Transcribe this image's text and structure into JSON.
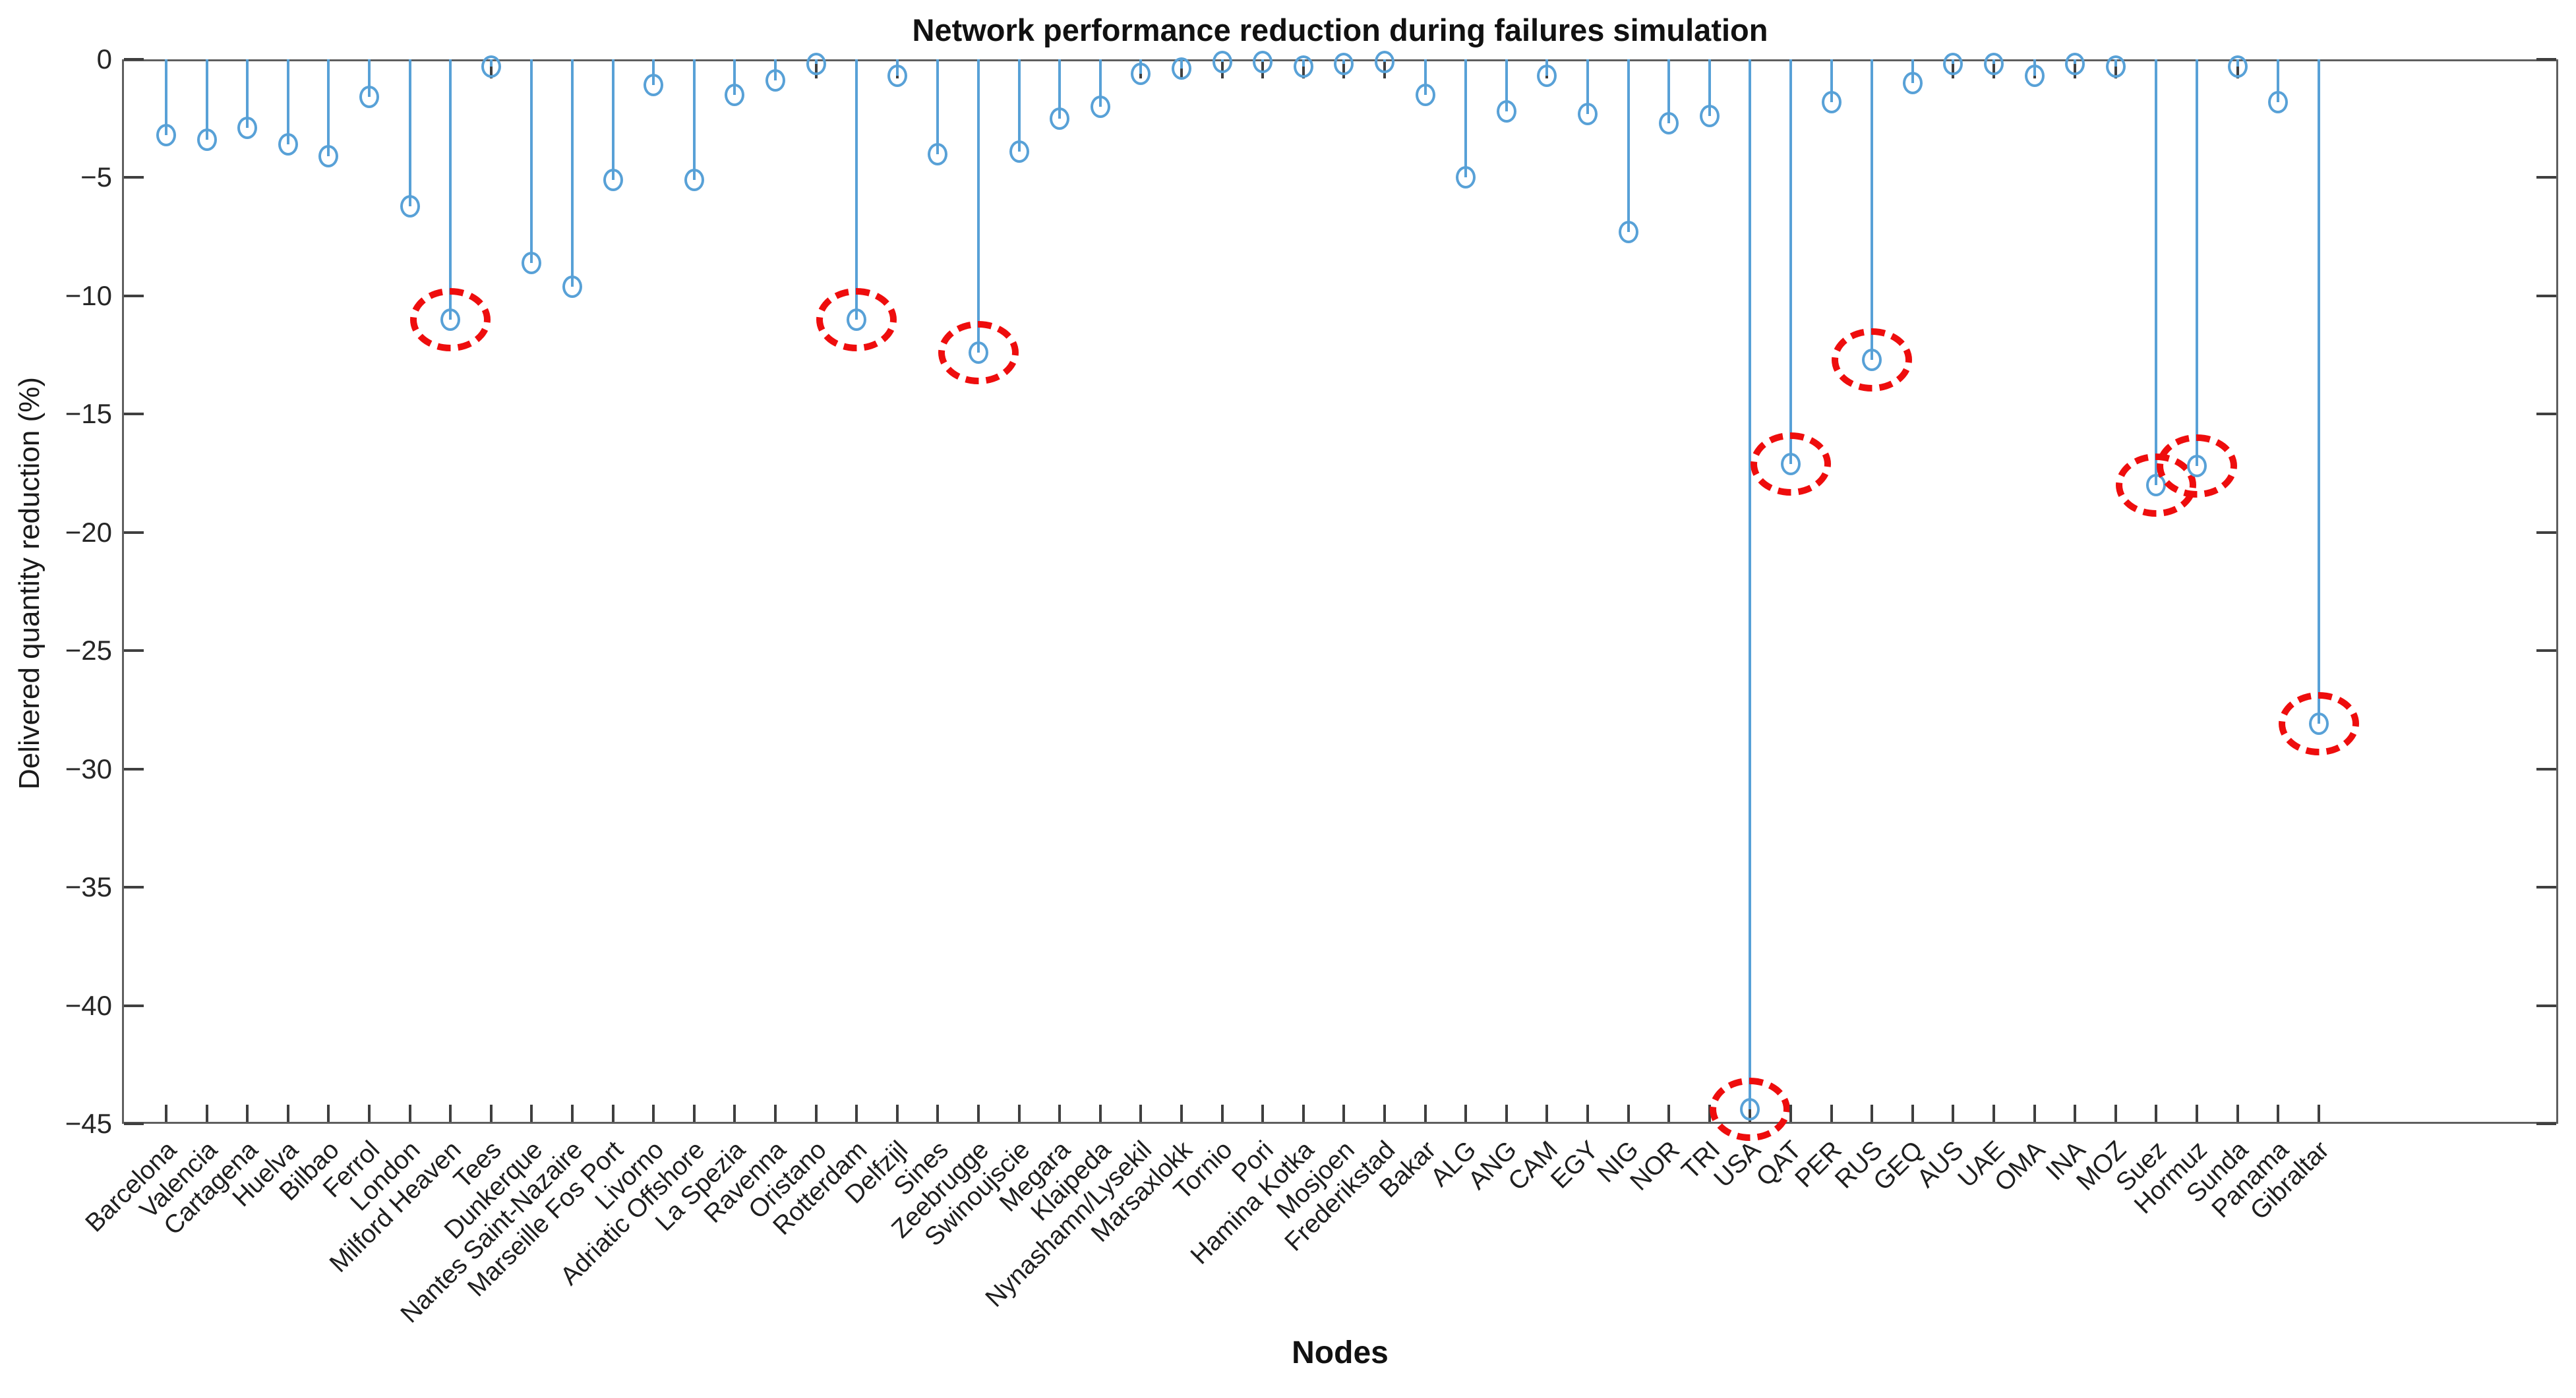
{
  "chart_data": {
    "type": "stem",
    "title": "Network performance reduction during failures simulation",
    "xlabel": "Nodes",
    "ylabel": "Delivered quantity reduction (%)",
    "ylim": [
      -45,
      0
    ],
    "grid": false,
    "legend": "none",
    "stem_color": "#58a1d7",
    "highlight_color": "#ee0d0d",
    "yticks": [
      {
        "label": "0",
        "value": 0
      },
      {
        "label": "−5",
        "value": -5
      },
      {
        "label": "−10",
        "value": -10
      },
      {
        "label": "−15",
        "value": -15
      },
      {
        "label": "−20",
        "value": -20
      },
      {
        "label": "−25",
        "value": -25
      },
      {
        "label": "−30",
        "value": -30
      },
      {
        "label": "−35",
        "value": -35
      },
      {
        "label": "−40",
        "value": -40
      },
      {
        "label": "−45",
        "value": -45
      }
    ],
    "points": [
      {
        "label": "Barcelona",
        "value": -3.2,
        "highlighted": false
      },
      {
        "label": "Valencia",
        "value": -3.4,
        "highlighted": false
      },
      {
        "label": "Cartagena",
        "value": -2.9,
        "highlighted": false
      },
      {
        "label": "Huelva",
        "value": -3.6,
        "highlighted": false
      },
      {
        "label": "Bilbao",
        "value": -4.1,
        "highlighted": false
      },
      {
        "label": "Ferrol",
        "value": -1.6,
        "highlighted": false
      },
      {
        "label": "London",
        "value": -6.2,
        "highlighted": false
      },
      {
        "label": "Milford Heaven",
        "value": -11.0,
        "highlighted": true
      },
      {
        "label": "Tees",
        "value": -0.3,
        "highlighted": false
      },
      {
        "label": "Dunkerque",
        "value": -8.6,
        "highlighted": false
      },
      {
        "label": "Nantes Saint-Nazaire",
        "value": -9.6,
        "highlighted": false
      },
      {
        "label": "Marseille Fos Port",
        "value": -5.1,
        "highlighted": false
      },
      {
        "label": "Livorno",
        "value": -1.1,
        "highlighted": false
      },
      {
        "label": "Adriatic Offshore",
        "value": -5.1,
        "highlighted": false
      },
      {
        "label": "La Spezia",
        "value": -1.5,
        "highlighted": false
      },
      {
        "label": "Ravenna",
        "value": -0.9,
        "highlighted": false
      },
      {
        "label": "Oristano",
        "value": -0.2,
        "highlighted": false
      },
      {
        "label": "Rotterdam",
        "value": -11.0,
        "highlighted": true
      },
      {
        "label": "Delfzijl",
        "value": -0.7,
        "highlighted": false
      },
      {
        "label": "Sines",
        "value": -4.0,
        "highlighted": false
      },
      {
        "label": "Zeebrugge",
        "value": -12.4,
        "highlighted": true
      },
      {
        "label": "Swinoujscie",
        "value": -3.9,
        "highlighted": false
      },
      {
        "label": "Megara",
        "value": -2.5,
        "highlighted": false
      },
      {
        "label": "Klaipeda",
        "value": -2.0,
        "highlighted": false
      },
      {
        "label": "Nynashamn/Lysekil",
        "value": -0.6,
        "highlighted": false
      },
      {
        "label": "Marsaxlokk",
        "value": -0.4,
        "highlighted": false
      },
      {
        "label": "Tornio",
        "value": -0.1,
        "highlighted": false
      },
      {
        "label": "Pori",
        "value": -0.1,
        "highlighted": false
      },
      {
        "label": "Hamina Kotka",
        "value": -0.3,
        "highlighted": false
      },
      {
        "label": "Mosjoen",
        "value": -0.2,
        "highlighted": false
      },
      {
        "label": "Frederikstad",
        "value": -0.1,
        "highlighted": false
      },
      {
        "label": "Bakar",
        "value": -1.5,
        "highlighted": false
      },
      {
        "label": "ALG",
        "value": -5.0,
        "highlighted": false
      },
      {
        "label": "ANG",
        "value": -2.2,
        "highlighted": false
      },
      {
        "label": "CAM",
        "value": -0.7,
        "highlighted": false
      },
      {
        "label": "EGY",
        "value": -2.3,
        "highlighted": false
      },
      {
        "label": "NIG",
        "value": -7.3,
        "highlighted": false
      },
      {
        "label": "NOR",
        "value": -2.7,
        "highlighted": false
      },
      {
        "label": "TRI",
        "value": -2.4,
        "highlighted": false
      },
      {
        "label": "USA",
        "value": -44.4,
        "highlighted": true
      },
      {
        "label": "QAT",
        "value": -17.1,
        "highlighted": true
      },
      {
        "label": "PER",
        "value": -1.8,
        "highlighted": false
      },
      {
        "label": "RUS",
        "value": -12.7,
        "highlighted": true
      },
      {
        "label": "GEQ",
        "value": -1.0,
        "highlighted": false
      },
      {
        "label": "AUS",
        "value": -0.2,
        "highlighted": false
      },
      {
        "label": "UAE",
        "value": -0.2,
        "highlighted": false
      },
      {
        "label": "OMA",
        "value": -0.7,
        "highlighted": false
      },
      {
        "label": "INA",
        "value": -0.2,
        "highlighted": false
      },
      {
        "label": "MOZ",
        "value": -0.3,
        "highlighted": false
      },
      {
        "label": "Suez",
        "value": -18.0,
        "highlighted": true
      },
      {
        "label": "Hormuz",
        "value": -17.2,
        "highlighted": true
      },
      {
        "label": "Sunda",
        "value": -0.3,
        "highlighted": false
      },
      {
        "label": "Panama",
        "value": -1.8,
        "highlighted": false
      },
      {
        "label": "Gibraltar",
        "value": -28.1,
        "highlighted": true
      }
    ]
  }
}
